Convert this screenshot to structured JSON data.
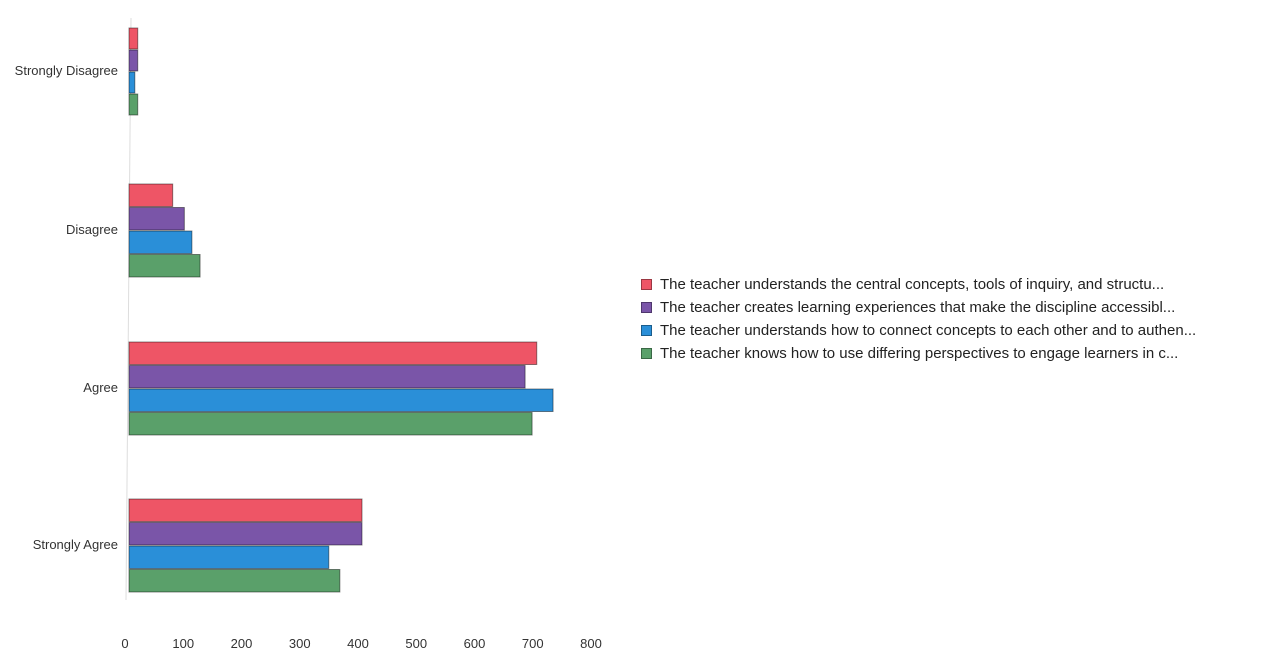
{
  "chart_data": {
    "type": "bar",
    "orientation": "horizontal",
    "categories": [
      "Strongly Disagree",
      "Disagree",
      "Agree",
      "Strongly Agree"
    ],
    "series": [
      {
        "name": "The teacher understands the central concepts, tools of inquiry, and structu...",
        "color": "#ee5566",
        "values": [
          15,
          75,
          700,
          400
        ]
      },
      {
        "name": "The teacher creates learning experiences that make the discipline accessibl...",
        "color": "#7a55a8",
        "values": [
          15,
          95,
          680,
          400
        ]
      },
      {
        "name": "The teacher understands how to connect concepts to each other and to authen...",
        "color": "#2a8fd8",
        "values": [
          10,
          108,
          728,
          343
        ]
      },
      {
        "name": "The teacher knows how to use differing perspectives to engage learners in c...",
        "color": "#5aa06a",
        "values": [
          15,
          122,
          692,
          362
        ]
      }
    ],
    "x_ticks": [
      "0",
      "100",
      "200",
      "300",
      "400",
      "500",
      "600",
      "700",
      "800"
    ],
    "xlim": [
      0,
      800
    ],
    "grid": false,
    "legend_position": "right"
  }
}
